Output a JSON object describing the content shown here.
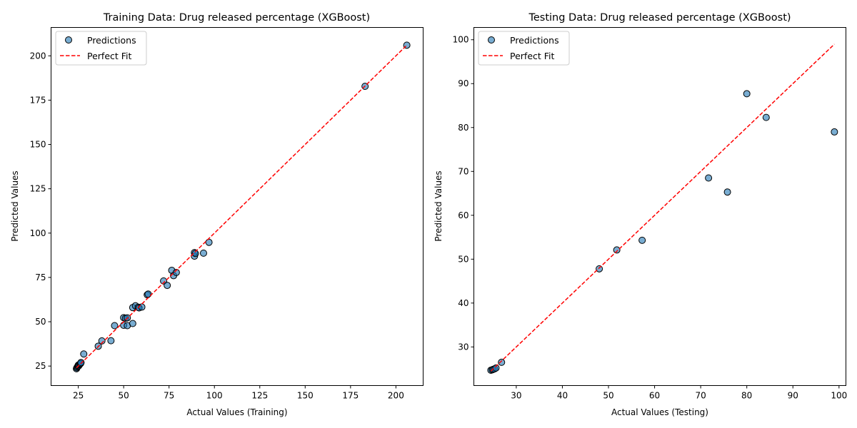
{
  "colors": {
    "points_fill": "#1f77b4",
    "points_edge": "#000000",
    "fit_line": "#ff0000"
  },
  "chart_data": [
    {
      "type": "scatter",
      "title": "Training Data: Drug released percentage (XGBoost)",
      "xlabel": "Actual Values (Training)",
      "ylabel": "Predicted Values",
      "xlim": [
        10,
        215
      ],
      "ylim": [
        14,
        216
      ],
      "xticks": [
        25,
        50,
        75,
        100,
        125,
        150,
        175,
        200
      ],
      "yticks": [
        25,
        50,
        75,
        100,
        125,
        150,
        175,
        200
      ],
      "legend": {
        "position": "upper-left",
        "entries": [
          "Predictions",
          "Perfect Fit"
        ]
      },
      "perfect_fit": {
        "from": 24,
        "to": 206
      },
      "grid": false,
      "series": [
        {
          "name": "Predictions",
          "points": [
            [
              24,
              23.5
            ],
            [
              24.2,
              24
            ],
            [
              24.5,
              24.5
            ],
            [
              24.8,
              25
            ],
            [
              25,
              25.5
            ],
            [
              25.3,
              25.2
            ],
            [
              25.5,
              25.8
            ],
            [
              26,
              26.2
            ],
            [
              26.3,
              26.5
            ],
            [
              26.5,
              27
            ],
            [
              28,
              31.8
            ],
            [
              36,
              36.2
            ],
            [
              38,
              39.2
            ],
            [
              43,
              39.3
            ],
            [
              45,
              47.8
            ],
            [
              50,
              52.3
            ],
            [
              50,
              48
            ],
            [
              51,
              52
            ],
            [
              52,
              52.2
            ],
            [
              52,
              47.8
            ],
            [
              55,
              49
            ],
            [
              55,
              58
            ],
            [
              56.5,
              59
            ],
            [
              58,
              58.2
            ],
            [
              58.5,
              57.8
            ],
            [
              60,
              58.3
            ],
            [
              63,
              65.2
            ],
            [
              63.5,
              65.6
            ],
            [
              72,
              73
            ],
            [
              74,
              70.5
            ],
            [
              76.5,
              79
            ],
            [
              77.5,
              76
            ],
            [
              79,
              77.8
            ],
            [
              89,
              87
            ],
            [
              89,
              89
            ],
            [
              89.5,
              88.5
            ],
            [
              94,
              88.7
            ],
            [
              97,
              94.8
            ],
            [
              183,
              182.8
            ],
            [
              206,
              206
            ]
          ]
        }
      ]
    },
    {
      "type": "scatter",
      "title": "Testing Data: Drug released percentage (XGBoost)",
      "xlabel": "Actual Values (Testing)",
      "ylabel": "Predicted Values",
      "xlim": [
        20.8,
        101.5
      ],
      "ylim": [
        21.2,
        102.8
      ],
      "xticks": [
        30,
        40,
        50,
        60,
        70,
        80,
        90,
        100
      ],
      "yticks": [
        30,
        40,
        50,
        60,
        70,
        80,
        90,
        100
      ],
      "legend": {
        "position": "upper-left",
        "entries": [
          "Predictions",
          "Perfect Fit"
        ]
      },
      "perfect_fit": {
        "from": 24.5,
        "to": 99
      },
      "grid": false,
      "series": [
        {
          "name": "Predictions",
          "points": [
            [
              24.5,
              24.7
            ],
            [
              24.8,
              24.8
            ],
            [
              25,
              24.9
            ],
            [
              25.3,
              25
            ],
            [
              25.6,
              25.2
            ],
            [
              26.8,
              26.5
            ],
            [
              48,
              47.8
            ],
            [
              51.8,
              52.1
            ],
            [
              57.3,
              54.3
            ],
            [
              71.7,
              68.5
            ],
            [
              75.8,
              65.3
            ],
            [
              80,
              87.7
            ],
            [
              84.2,
              82.3
            ],
            [
              99,
              79
            ]
          ]
        }
      ]
    }
  ]
}
